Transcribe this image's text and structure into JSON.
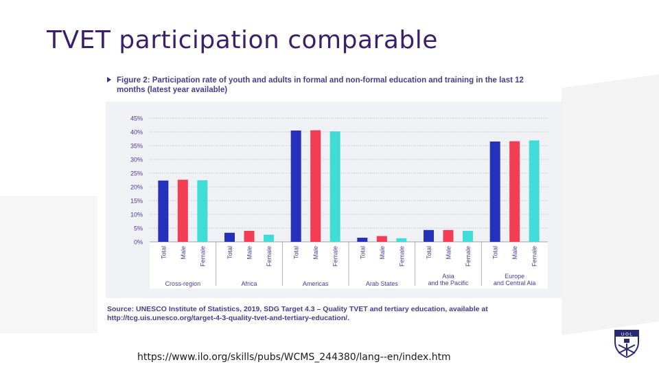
{
  "slide": {
    "title": "TVET participation comparable",
    "url": "https://www.ilo.org/skills/pubs/WCMS_244380/lang--en/index.htm"
  },
  "figure": {
    "caption": "Figure 2: Participation rate of youth and adults in formal and non-formal education and training in the last 12 months (latest year available)",
    "source": "Source: UNESCO Institute of Statistics, 2019, SDG Target 4.3 – Quality TVET and tertiary education, available at http://tcg.uis.unesco.org/target-4-3-quality-tvet-and-tertiary-education/."
  },
  "logo": {
    "icon": "university-crest-icon",
    "text": "U·O·L"
  },
  "chart_data": {
    "type": "bar",
    "title": "",
    "xlabel": "",
    "ylabel": "",
    "ylim": [
      0,
      45
    ],
    "yticks": [
      "0%",
      "5%",
      "10%",
      "15%",
      "20%",
      "25%",
      "30%",
      "35%",
      "40%",
      "45%"
    ],
    "grid": true,
    "groups": [
      {
        "label": "Cross-region",
        "bars": [
          {
            "label": "Total",
            "value": 22.3
          },
          {
            "label": "Male",
            "value": 22.6
          },
          {
            "label": "Female",
            "value": 22.4
          }
        ]
      },
      {
        "label": "Africa",
        "bars": [
          {
            "label": "Total",
            "value": 3.3
          },
          {
            "label": "Male",
            "value": 4.0
          },
          {
            "label": "Female",
            "value": 2.6
          }
        ]
      },
      {
        "label": "Americas",
        "bars": [
          {
            "label": "Total",
            "value": 40.5
          },
          {
            "label": "Male",
            "value": 40.6
          },
          {
            "label": "Female",
            "value": 40.2
          }
        ]
      },
      {
        "label": "Arab States",
        "bars": [
          {
            "label": "Total",
            "value": 1.5
          },
          {
            "label": "Male",
            "value": 2.1
          },
          {
            "label": "Female",
            "value": 1.3
          }
        ]
      },
      {
        "label": "Asia and the Pacific",
        "bars": [
          {
            "label": "Total",
            "value": 4.3
          },
          {
            "label": "Male",
            "value": 4.3
          },
          {
            "label": "Female",
            "value": 4.0
          }
        ]
      },
      {
        "label": "Europe and Central Aia",
        "bars": [
          {
            "label": "Total",
            "value": 36.5
          },
          {
            "label": "Male",
            "value": 36.6
          },
          {
            "label": "Female",
            "value": 36.9
          }
        ]
      }
    ],
    "colors": {
      "Total": "#2431b8",
      "Male": "#f23d55",
      "Female": "#3fdcd8"
    }
  }
}
